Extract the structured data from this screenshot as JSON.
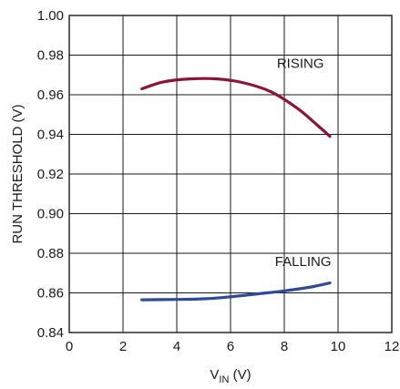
{
  "chart_data": {
    "type": "line",
    "title": "",
    "xlabel": {
      "main": "V",
      "sub": "IN",
      "unit": " (V)"
    },
    "ylabel": "RUN THRESHOLD (V)",
    "xlim": [
      0,
      12
    ],
    "ylim": [
      0.84,
      1.0
    ],
    "x_ticks": [
      "0",
      "2",
      "4",
      "6",
      "8",
      "10",
      "12"
    ],
    "y_ticks": [
      "0.84",
      "0.86",
      "0.88",
      "0.90",
      "0.92",
      "0.94",
      "0.96",
      "0.98",
      "1.00"
    ],
    "grid": true,
    "series": [
      {
        "name": "RISING",
        "color": "#8b1538",
        "x": [
          2.7,
          3.5,
          4.5,
          5.5,
          6.5,
          7.5,
          8.5,
          9.2,
          9.7
        ],
        "y": [
          0.963,
          0.9665,
          0.968,
          0.968,
          0.966,
          0.9615,
          0.953,
          0.945,
          0.939
        ]
      },
      {
        "name": "FALLING",
        "color": "#2e4a9a",
        "x": [
          2.7,
          4.0,
          5.0,
          6.0,
          7.0,
          8.0,
          9.0,
          9.7
        ],
        "y": [
          0.8565,
          0.8567,
          0.857,
          0.858,
          0.8595,
          0.861,
          0.863,
          0.865
        ]
      }
    ]
  }
}
